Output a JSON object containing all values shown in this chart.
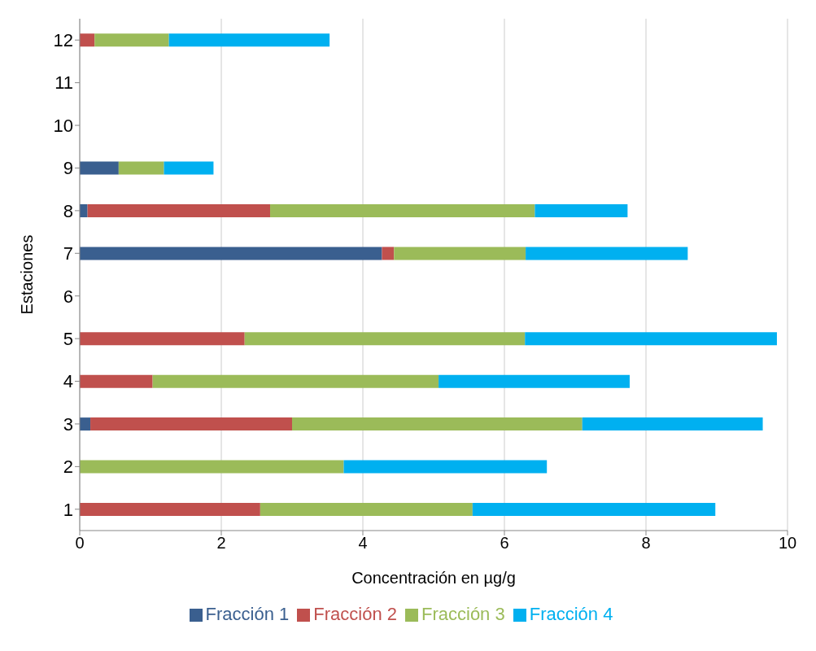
{
  "chart_data": {
    "type": "bar",
    "orientation": "horizontal",
    "stacked": true,
    "xlabel": "Concentración en µg/g",
    "ylabel": "Estaciones",
    "categories": [
      "12",
      "11",
      "10",
      "9",
      "8",
      "7",
      "6",
      "5",
      "4",
      "3",
      "2",
      "1"
    ],
    "series": [
      {
        "name": "Fracción 1",
        "color": "#3a5f8f",
        "values": [
          0,
          0,
          0,
          0.55,
          0.11,
          4.27,
          0,
          0,
          0,
          0.15,
          0,
          0
        ]
      },
      {
        "name": "Fracción 2",
        "color": "#c0504d",
        "values": [
          0.21,
          0,
          0,
          0,
          2.58,
          0.17,
          0,
          2.33,
          1.03,
          2.85,
          0,
          2.55
        ]
      },
      {
        "name": "Fracción 3",
        "color": "#9bbb59",
        "values": [
          1.05,
          0,
          0,
          0.64,
          3.74,
          1.86,
          0,
          3.96,
          4.04,
          4.1,
          3.73,
          3.0
        ]
      },
      {
        "name": "Fracción 4",
        "color": "#00b0f0",
        "values": [
          2.27,
          0,
          0,
          0.7,
          1.31,
          2.29,
          0,
          3.56,
          2.7,
          2.55,
          2.87,
          3.43
        ]
      }
    ],
    "xlim": [
      0,
      10
    ],
    "xticks": [
      0,
      2,
      4,
      6,
      8,
      10
    ],
    "grid": "x",
    "legend": "bottom"
  }
}
